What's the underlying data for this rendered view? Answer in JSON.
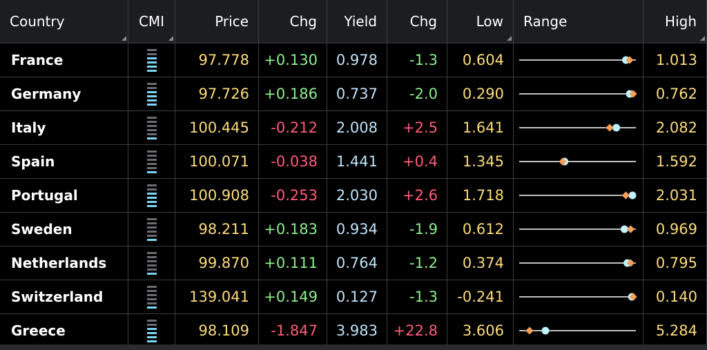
{
  "headers": {
    "country": "Country",
    "cmi": "CMI",
    "price": "Price",
    "chg1": "Chg",
    "yield": "Yield",
    "chg2": "Chg",
    "low": "Low",
    "range": "Range",
    "high": "High"
  },
  "colors": {
    "background": "#000000",
    "gridline": "#3c3e41",
    "price_text": "#fddc7c",
    "yield_text": "#bfe3fa",
    "positive": "#8ff08c",
    "negative": "#ff5e78",
    "range_line": "#ffffff",
    "range_diamond": "#f5a05a",
    "range_dot": "#bff2fb"
  },
  "rows": [
    {
      "country": "France",
      "price": "97.778",
      "chg": "+0.130",
      "yield": "0.978",
      "ychg": "-1.3",
      "low": "0.604",
      "high": "1.013",
      "cmi_level": 4
    },
    {
      "country": "Germany",
      "price": "97.726",
      "chg": "+0.186",
      "yield": "0.737",
      "ychg": "-2.0",
      "low": "0.290",
      "high": "0.762",
      "cmi_level": 4
    },
    {
      "country": "Italy",
      "price": "100.445",
      "chg": "-0.212",
      "yield": "2.008",
      "ychg": "+2.5",
      "low": "1.641",
      "high": "2.082",
      "cmi_level": 1
    },
    {
      "country": "Spain",
      "price": "100.071",
      "chg": "-0.038",
      "yield": "1.441",
      "ychg": "+0.4",
      "low": "1.345",
      "high": "1.592",
      "cmi_level": 1
    },
    {
      "country": "Portugal",
      "price": "100.908",
      "chg": "-0.253",
      "yield": "2.030",
      "ychg": "+2.6",
      "low": "1.718",
      "high": "2.031",
      "cmi_level": 4
    },
    {
      "country": "Sweden",
      "price": "98.211",
      "chg": "+0.183",
      "yield": "0.934",
      "ychg": "-1.9",
      "low": "0.612",
      "high": "0.969",
      "cmi_level": 1
    },
    {
      "country": "Netherlands",
      "price": "99.870",
      "chg": "+0.111",
      "yield": "0.764",
      "ychg": "-1.2",
      "low": "0.374",
      "high": "0.795",
      "cmi_level": 1
    },
    {
      "country": "Switzerland",
      "price": "139.041",
      "chg": "+0.149",
      "yield": "0.127",
      "ychg": "-1.3",
      "low": "-0.241",
      "high": "0.140",
      "cmi_level": 1
    },
    {
      "country": "Greece",
      "price": "98.109",
      "chg": "-1.847",
      "yield": "3.983",
      "ychg": "+22.8",
      "low": "3.606",
      "high": "5.284",
      "cmi_level": 4
    }
  ]
}
